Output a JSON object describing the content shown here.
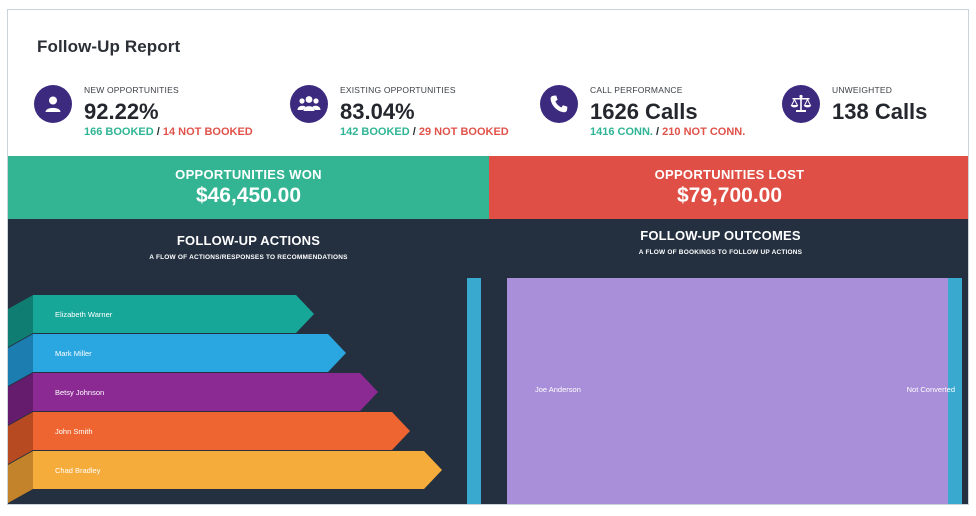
{
  "header": {
    "title": "Follow-Up Report"
  },
  "kpis": [
    {
      "icon": "user-icon",
      "label": "NEW OPPORTUNITIES",
      "value": "92.22%",
      "sub_positive": "166 BOOKED",
      "sub_separator": "/",
      "sub_negative": "14 NOT BOOKED"
    },
    {
      "icon": "group-icon",
      "label": "EXISTING OPPORTUNITIES",
      "value": "83.04%",
      "sub_positive": "142 BOOKED",
      "sub_separator": "/",
      "sub_negative": "29 NOT BOOKED"
    },
    {
      "icon": "phone-icon",
      "label": "CALL PERFORMANCE",
      "value": "1626 Calls",
      "sub_positive": "1416 CONN.",
      "sub_separator": "/",
      "sub_negative": "210 NOT CONN."
    },
    {
      "icon": "scale-icon",
      "label": "UNWEIGHTED",
      "value": "138 Calls",
      "sub_positive": "",
      "sub_separator": "",
      "sub_negative": ""
    }
  ],
  "bands": {
    "won": {
      "label": "OPPORTUNITIES WON",
      "value": "$46,450.00",
      "color": "#33b593"
    },
    "lost": {
      "label": "OPPORTUNITIES LOST",
      "value": "$79,700.00",
      "color": "#e04f45"
    }
  },
  "actions_panel": {
    "title": "FOLLOW-UP ACTIONS",
    "subtitle": "A FLOW OF ACTIONS/RESPONSES TO RECOMMENDATIONS",
    "flows": [
      {
        "name": "Elizabeth Warner",
        "color": "#17a799",
        "dark": "#0f7d72"
      },
      {
        "name": "Mark Miller",
        "color": "#2aa7e1",
        "dark": "#1b7db0"
      },
      {
        "name": "Betsy Johnson",
        "color": "#8b2a93",
        "dark": "#651c6c"
      },
      {
        "name": "John Smith",
        "color": "#ef6531",
        "dark": "#b84a22"
      },
      {
        "name": "Chad Bradley",
        "color": "#f6ac3b",
        "dark": "#c2832a"
      }
    ]
  },
  "outcomes_panel": {
    "title": "FOLLOW-UP OUTCOMES",
    "subtitle": "A FLOW OF BOOKINGS TO FOLLOW UP ACTIONS",
    "source_label": "Joe Anderson",
    "target_label": "Not Converted",
    "flow_color": "#a98fd9",
    "node_color": "#3aa9cf"
  },
  "colors": {
    "icon_bg": "#3b2a7e",
    "panel_bg": "#243040",
    "positive": "#2fb595",
    "negative": "#e0524a"
  }
}
